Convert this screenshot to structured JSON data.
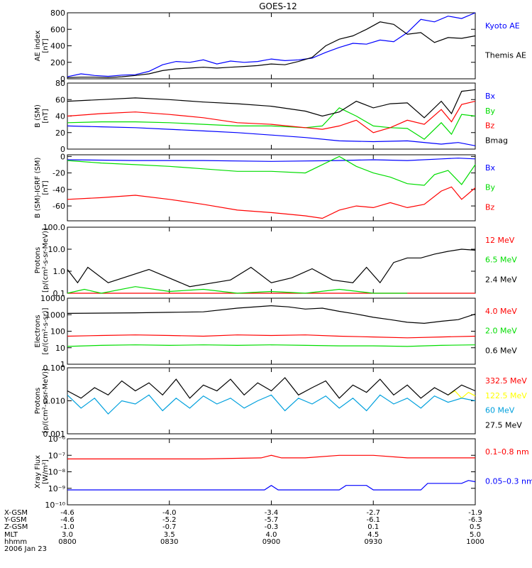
{
  "title": "GOES-12",
  "colors": {
    "black": "#000000",
    "blue": "#0000ff",
    "green": "#00dd00",
    "red": "#ff0000",
    "yellow": "#ffff00",
    "cyan": "#00a0dd"
  },
  "chart_data": [
    {
      "type": "line",
      "ylabel": [
        "AE index",
        "[nT]"
      ],
      "y_ticks": [
        "0",
        "200",
        "400",
        "600",
        "800"
      ],
      "ylim": [
        0,
        800
      ],
      "scale": "linear",
      "series": [
        {
          "name": "Kyoto AE",
          "color": "blue",
          "x": [
            0,
            4,
            8,
            12,
            16,
            20,
            24,
            28,
            32,
            36,
            40,
            44,
            48,
            52,
            56,
            60,
            64,
            68,
            72,
            76,
            80,
            84,
            88,
            92,
            96,
            100,
            104,
            108,
            112,
            116,
            120
          ],
          "values": [
            25,
            60,
            40,
            30,
            45,
            50,
            90,
            170,
            210,
            200,
            230,
            180,
            215,
            200,
            210,
            240,
            220,
            230,
            250,
            320,
            380,
            430,
            420,
            470,
            450,
            560,
            720,
            690,
            760,
            730,
            800
          ]
        },
        {
          "name": "Themis AE",
          "color": "black",
          "x": [
            0,
            4,
            8,
            12,
            16,
            20,
            24,
            28,
            32,
            36,
            40,
            44,
            48,
            52,
            56,
            60,
            64,
            68,
            72,
            76,
            80,
            84,
            88,
            92,
            96,
            100,
            104,
            108,
            112,
            116,
            120
          ],
          "values": [
            15,
            20,
            20,
            15,
            25,
            40,
            60,
            100,
            120,
            130,
            140,
            130,
            140,
            150,
            160,
            180,
            170,
            210,
            260,
            400,
            480,
            520,
            600,
            690,
            660,
            540,
            560,
            440,
            500,
            490,
            520
          ]
        }
      ]
    },
    {
      "type": "line",
      "ylabel": [
        "B (SM)",
        "[nT]"
      ],
      "y_ticks": [
        "0",
        "20",
        "40",
        "60",
        "80"
      ],
      "ylim": [
        0,
        80
      ],
      "scale": "linear",
      "series": [
        {
          "name": "Bx",
          "color": "blue",
          "x": [
            0,
            10,
            20,
            30,
            40,
            50,
            60,
            70,
            80,
            90,
            100,
            110,
            115,
            120
          ],
          "values": [
            28,
            27,
            26,
            24,
            22,
            20,
            17,
            14,
            10,
            9,
            10,
            6,
            8,
            4
          ]
        },
        {
          "name": "By",
          "color": "green",
          "x": [
            0,
            10,
            20,
            30,
            40,
            50,
            60,
            70,
            75,
            80,
            85,
            90,
            95,
            100,
            105,
            110,
            113,
            116,
            120
          ],
          "values": [
            32,
            33,
            33,
            32,
            30,
            28,
            28,
            26,
            28,
            50,
            40,
            28,
            26,
            25,
            12,
            32,
            18,
            42,
            40
          ]
        },
        {
          "name": "Bz",
          "color": "red",
          "x": [
            0,
            10,
            20,
            30,
            40,
            50,
            60,
            70,
            75,
            80,
            85,
            90,
            95,
            100,
            105,
            110,
            113,
            116,
            120
          ],
          "values": [
            40,
            43,
            45,
            42,
            38,
            32,
            30,
            26,
            24,
            28,
            35,
            20,
            26,
            35,
            30,
            48,
            33,
            54,
            58
          ]
        },
        {
          "name": "Bmag",
          "color": "black",
          "x": [
            0,
            10,
            20,
            30,
            40,
            50,
            60,
            70,
            75,
            80,
            85,
            90,
            95,
            100,
            105,
            110,
            113,
            116,
            120
          ],
          "values": [
            58,
            60,
            62,
            60,
            57,
            55,
            52,
            46,
            40,
            45,
            58,
            50,
            55,
            56,
            38,
            58,
            43,
            70,
            72
          ]
        }
      ]
    },
    {
      "type": "line",
      "ylabel": [
        "B (SM)-IGRF (SM)",
        "[nT]"
      ],
      "y_ticks": [
        "0",
        "-20",
        "-40",
        "-60"
      ],
      "ylim": [
        -78,
        2
      ],
      "scale": "linear",
      "series": [
        {
          "name": "Bx",
          "color": "blue",
          "x": [
            0,
            20,
            40,
            60,
            80,
            90,
            100,
            110,
            115,
            120
          ],
          "values": [
            -4,
            -5,
            -5,
            -6,
            -5,
            -4,
            -5,
            -3,
            -2,
            -3
          ]
        },
        {
          "name": "By",
          "color": "green",
          "x": [
            0,
            10,
            20,
            30,
            40,
            50,
            60,
            70,
            75,
            80,
            85,
            90,
            95,
            100,
            105,
            108,
            112,
            116,
            120
          ],
          "values": [
            -5,
            -8,
            -10,
            -12,
            -15,
            -18,
            -18,
            -20,
            -10,
            0,
            -12,
            -20,
            -25,
            -33,
            -35,
            -22,
            -17,
            -34,
            -10
          ]
        },
        {
          "name": "Bz",
          "color": "red",
          "x": [
            0,
            10,
            20,
            30,
            40,
            50,
            60,
            70,
            75,
            80,
            85,
            90,
            95,
            100,
            105,
            110,
            113,
            116,
            120
          ],
          "values": [
            -52,
            -50,
            -47,
            -52,
            -58,
            -65,
            -68,
            -72,
            -75,
            -65,
            -60,
            -62,
            -56,
            -62,
            -58,
            -42,
            -37,
            -52,
            -38
          ]
        }
      ]
    },
    {
      "type": "line",
      "ylabel": [
        "Protons",
        "[p/(cm²-s-sr-MeV)]"
      ],
      "y_ticks": [
        "0.1",
        "1.0",
        "10.0",
        "100.0"
      ],
      "ylim": [
        0.1,
        100
      ],
      "scale": "log",
      "series": [
        {
          "name": "12 MeV",
          "color": "red",
          "x": [
            0,
            30,
            60,
            84,
            96,
            120
          ],
          "values": [
            0.1,
            0.1,
            0.1,
            0.1,
            0.1,
            0.1
          ]
        },
        {
          "name": "6.5 MeV",
          "color": "green",
          "x": [
            0,
            5,
            10,
            20,
            30,
            40,
            50,
            60,
            70,
            80,
            90,
            100
          ],
          "values": [
            0.1,
            0.15,
            0.1,
            0.2,
            0.12,
            0.15,
            0.1,
            0.12,
            0.1,
            0.15,
            0.1,
            0.1
          ]
        },
        {
          "name": "2.4 MeV",
          "color": "black",
          "x": [
            0,
            3,
            6,
            12,
            24,
            36,
            48,
            54,
            60,
            66,
            72,
            78,
            84,
            88,
            92,
            96,
            100,
            104,
            108,
            112,
            116,
            120
          ],
          "values": [
            1.2,
            0.3,
            1.5,
            0.3,
            1.2,
            0.2,
            0.4,
            1.5,
            0.3,
            0.5,
            1.3,
            0.4,
            0.3,
            1.5,
            0.3,
            2.5,
            4,
            4,
            6,
            8,
            10,
            9
          ]
        }
      ]
    },
    {
      "type": "line",
      "ylabel": [
        "Electrons",
        "[e/(cm²-s-sr)]"
      ],
      "y_ticks": [
        "1",
        "10",
        "100",
        "1000",
        "10000"
      ],
      "ylim": [
        1,
        10000
      ],
      "scale": "log",
      "series": [
        {
          "name": "4.0 MeV",
          "color": "red",
          "x": [
            0,
            10,
            20,
            30,
            40,
            50,
            60,
            70,
            80,
            90,
            100,
            110,
            120
          ],
          "values": [
            50,
            55,
            60,
            55,
            50,
            60,
            55,
            60,
            50,
            45,
            40,
            45,
            50
          ]
        },
        {
          "name": "2.0 MeV",
          "color": "green",
          "x": [
            0,
            10,
            20,
            30,
            40,
            50,
            60,
            70,
            80,
            90,
            100,
            110,
            120
          ],
          "values": [
            12,
            14,
            15,
            14,
            15,
            14,
            15,
            14,
            13,
            13,
            12,
            14,
            15
          ]
        },
        {
          "name": "0.6 MeV",
          "color": "black",
          "x": [
            0,
            10,
            20,
            30,
            40,
            50,
            60,
            65,
            70,
            75,
            80,
            85,
            90,
            95,
            100,
            105,
            110,
            115,
            120
          ],
          "values": [
            1200,
            1250,
            1300,
            1400,
            1500,
            2500,
            3500,
            3000,
            2200,
            2500,
            1600,
            1100,
            700,
            500,
            350,
            300,
            400,
            500,
            1100
          ]
        }
      ]
    },
    {
      "type": "line",
      "ylabel": [
        "Protons",
        "[p/(cm²-s-sr-MeV)]"
      ],
      "y_ticks": [
        "0.001",
        "0.010",
        "0.100"
      ],
      "ylim": [
        0.001,
        0.1
      ],
      "scale": "log",
      "series": [
        {
          "name": "332.5 MeV",
          "color": "red",
          "x": [],
          "values": []
        },
        {
          "name": "122.5 MeV",
          "color": "yellow",
          "x": [
            112,
            114,
            116,
            118,
            120
          ],
          "values": [
            0.015,
            0.02,
            0.012,
            0.018,
            0.014
          ]
        },
        {
          "name": "60 MeV",
          "color": "cyan",
          "x": [
            0,
            4,
            8,
            12,
            16,
            20,
            24,
            28,
            32,
            36,
            40,
            44,
            48,
            52,
            56,
            60,
            64,
            68,
            72,
            76,
            80,
            84,
            88,
            92,
            96,
            100,
            104,
            108,
            112,
            116,
            120
          ],
          "values": [
            0.015,
            0.006,
            0.012,
            0.004,
            0.01,
            0.008,
            0.015,
            0.005,
            0.012,
            0.006,
            0.014,
            0.008,
            0.012,
            0.006,
            0.01,
            0.015,
            0.005,
            0.012,
            0.008,
            0.014,
            0.006,
            0.012,
            0.005,
            0.015,
            0.008,
            0.012,
            0.006,
            0.014,
            0.009,
            0.012,
            0.01
          ]
        },
        {
          "name": "27.5 MeV",
          "color": "black",
          "x": [
            0,
            4,
            8,
            12,
            16,
            20,
            24,
            28,
            32,
            36,
            40,
            44,
            48,
            52,
            56,
            60,
            64,
            68,
            72,
            76,
            80,
            84,
            88,
            92,
            96,
            100,
            104,
            108,
            112,
            116,
            120
          ],
          "values": [
            0.02,
            0.012,
            0.025,
            0.015,
            0.04,
            0.02,
            0.035,
            0.015,
            0.045,
            0.012,
            0.03,
            0.02,
            0.045,
            0.015,
            0.035,
            0.02,
            0.05,
            0.015,
            0.025,
            0.04,
            0.012,
            0.03,
            0.018,
            0.045,
            0.015,
            0.03,
            0.012,
            0.025,
            0.015,
            0.03,
            0.02
          ]
        }
      ]
    },
    {
      "type": "line",
      "ylabel": [
        "Xray Flux",
        "[W/m²]"
      ],
      "y_ticks": [
        "10⁻¹⁰",
        "10⁻⁹",
        "10⁻⁸",
        "10⁻⁷",
        "10⁻⁶"
      ],
      "ylim": [
        1e-10,
        1e-06
      ],
      "scale": "log",
      "series": [
        {
          "name": "0.1–0.8 nm",
          "color": "red",
          "x": [
            0,
            40,
            57,
            60,
            63,
            70,
            80,
            90,
            100,
            120
          ],
          "values": [
            6e-08,
            6e-08,
            7e-08,
            1e-07,
            7e-08,
            7e-08,
            1e-07,
            1e-07,
            7e-08,
            7e-08
          ]
        },
        {
          "name": "0.05–0.3 nm",
          "color": "blue",
          "x": [
            0,
            56,
            58,
            60,
            62,
            80,
            82,
            88,
            90,
            104,
            106,
            116,
            118,
            120
          ],
          "values": [
            8e-10,
            8e-10,
            8e-10,
            1.5e-09,
            8e-10,
            8e-10,
            1.5e-09,
            1.5e-09,
            8e-10,
            8e-10,
            2e-09,
            2e-09,
            3e-09,
            2.5e-09
          ]
        }
      ]
    }
  ],
  "axis_table": {
    "rows": [
      {
        "label": "X-GSM",
        "values": [
          "-4.6",
          "-4.0",
          "-3.4",
          "-2.7",
          "-1.9"
        ]
      },
      {
        "label": "Y-GSM",
        "values": [
          "-4.6",
          "-5.2",
          "-5.7",
          "-6.1",
          "-6.3"
        ]
      },
      {
        "label": "Z-GSM",
        "values": [
          "-1.0",
          "-0.7",
          "-0.3",
          "0.1",
          "0.5"
        ]
      },
      {
        "label": "MLT",
        "values": [
          "3.0",
          "3.5",
          "4.0",
          "4.5",
          "5.0"
        ]
      },
      {
        "label": "hhmm",
        "values": [
          "0800",
          "0830",
          "0900",
          "0930",
          "1000"
        ]
      }
    ],
    "date": "2006 Jan 23"
  }
}
